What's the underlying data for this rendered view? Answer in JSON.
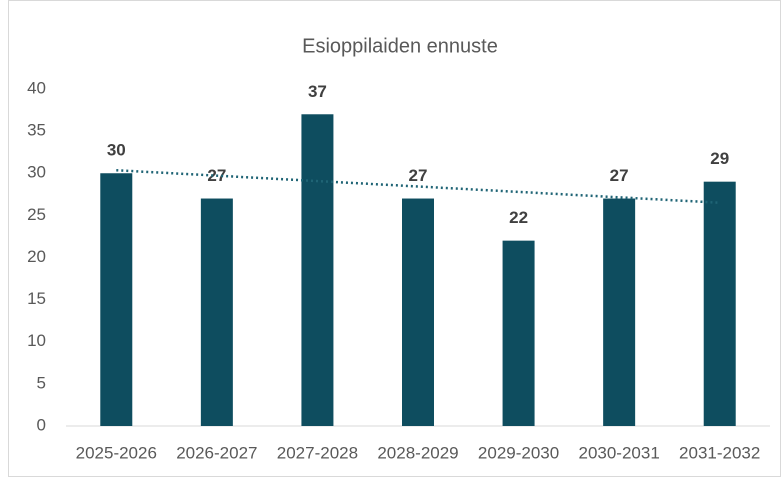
{
  "chart_data": {
    "type": "bar",
    "title": "Esioppilaiden ennuste",
    "categories": [
      "2025-2026",
      "2026-2027",
      "2027-2028",
      "2028-2029",
      "2029-2030",
      "2030-2031",
      "2031-2032"
    ],
    "values": [
      30,
      27,
      37,
      27,
      22,
      27,
      29
    ],
    "color": "#0e4d5f",
    "ylim": [
      0,
      40
    ],
    "yticks": [
      0,
      5,
      10,
      15,
      20,
      25,
      30,
      35,
      40
    ],
    "grid": false,
    "data_labels": true,
    "trendline": "linear",
    "trendline_color": "#1f6475"
  }
}
